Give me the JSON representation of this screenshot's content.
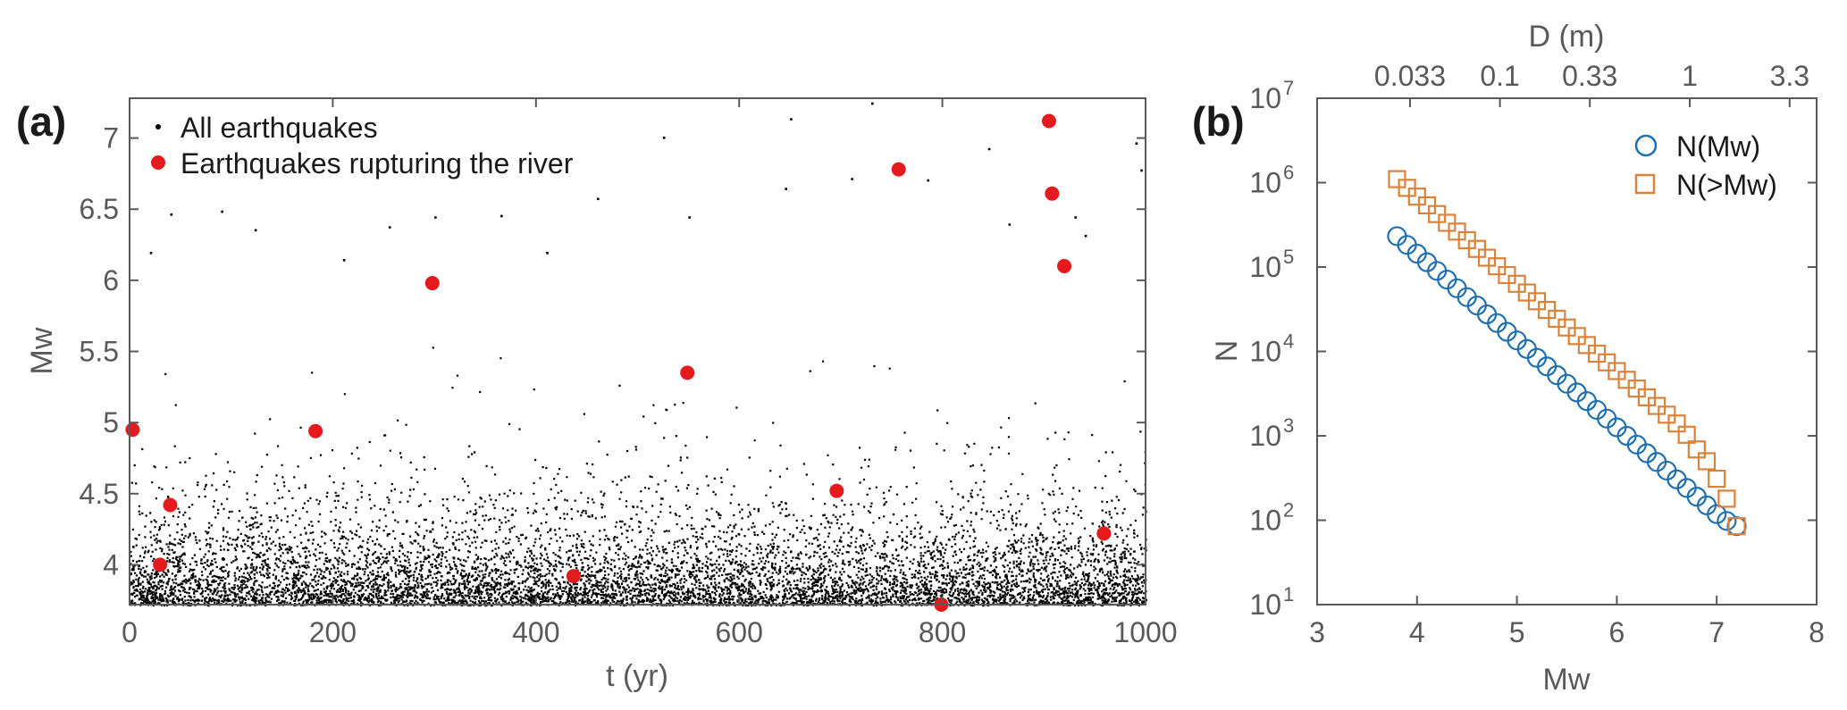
{
  "panel_a": {
    "label": "(a)",
    "xlabel": "t (yr)",
    "ylabel": "Mw",
    "xticks": [
      "0",
      "200",
      "400",
      "600",
      "800",
      "1000"
    ],
    "yticks": [
      "4",
      "4.5",
      "5",
      "5.5",
      "6",
      "6.5",
      "7"
    ],
    "legend": {
      "all": "All earthquakes",
      "river": "Earthquakes rupturing the river"
    }
  },
  "panel_b": {
    "label": "(b)",
    "xlabel": "Mw",
    "ylabel": "N",
    "top_xlabel": "D (m)",
    "xticks": [
      "3",
      "4",
      "5",
      "6",
      "7",
      "8"
    ],
    "top_xticks": [
      "0.033",
      "0.1",
      "0.33",
      "1",
      "3.3"
    ],
    "ytick_base": "10",
    "ytick_exps": [
      "1",
      "2",
      "3",
      "4",
      "5",
      "6",
      "7"
    ],
    "legend": {
      "n": "N(Mw)",
      "ngt": "N(>Mw)"
    }
  },
  "colors": {
    "river": "#e41a1c",
    "points": "#000000",
    "n_mw": "#1f6fb0",
    "n_gt_mw": "#d9823b",
    "axis": "#595959"
  },
  "chart_data": [
    {
      "type": "scatter",
      "title": "",
      "xlabel": "t (yr)",
      "ylabel": "Mw",
      "xlim": [
        0,
        1000
      ],
      "ylim": [
        3.72,
        7.28
      ],
      "series": [
        {
          "name": "All earthquakes",
          "marker": "dot",
          "distribution": "dense cloud of roughly 20000+ events, uniform in t over 0-1000 yr, Mw from ~3.75 up to ~7.25 with Gutenberg-Richter frequency decay (very dense below Mw 4.5)",
          "points": [
            [
              730,
              7.25
            ],
            [
              650,
              7.14
            ],
            [
              525,
              7.01
            ],
            [
              990,
              6.97
            ],
            [
              845,
              6.93
            ],
            [
              710,
              6.72
            ],
            [
              785,
              6.71
            ],
            [
              645,
              6.65
            ],
            [
              460,
              6.58
            ],
            [
              90,
              6.49
            ],
            [
              40,
              6.47
            ],
            [
              365,
              6.46
            ],
            [
              300,
              6.45
            ],
            [
              255,
              6.38
            ],
            [
              550,
              6.45
            ],
            [
              865,
              6.4
            ],
            [
              930,
              6.45
            ],
            [
              123,
              6.36
            ],
            [
              995,
              6.78
            ],
            [
              940,
              6.32
            ],
            [
              20,
              6.2
            ],
            [
              210,
              6.15
            ],
            [
              410,
              6.2
            ]
          ]
        },
        {
          "name": "Earthquakes rupturing the river",
          "marker": "circle",
          "points": [
            [
              3,
              4.95
            ],
            [
              30,
              4.0
            ],
            [
              40,
              4.42
            ],
            [
              183,
              4.94
            ],
            [
              298,
              5.98
            ],
            [
              437,
              3.92
            ],
            [
              549,
              5.35
            ],
            [
              696,
              4.52
            ],
            [
              757,
              6.78
            ],
            [
              799,
              3.72
            ],
            [
              905,
              7.12
            ],
            [
              908,
              6.61
            ],
            [
              920,
              6.1
            ],
            [
              959,
              4.22
            ]
          ]
        }
      ]
    },
    {
      "type": "scatter",
      "title": "",
      "xlabel": "Mw",
      "ylabel": "N",
      "x2label": "D (m)",
      "xlim": [
        3,
        8
      ],
      "ylim": [
        10,
        10000000
      ],
      "yscale": "log",
      "grid": false,
      "legend": "top-right",
      "series": [
        {
          "name": "N(Mw)",
          "marker": "circle",
          "x": [
            3.8,
            3.9,
            4.0,
            4.1,
            4.2,
            4.3,
            4.4,
            4.5,
            4.6,
            4.7,
            4.8,
            4.9,
            5.0,
            5.1,
            5.2,
            5.3,
            5.4,
            5.5,
            5.6,
            5.7,
            5.8,
            5.9,
            6.0,
            6.1,
            6.2,
            6.3,
            6.4,
            6.5,
            6.6,
            6.7,
            6.8,
            6.9,
            7.0,
            7.1,
            7.2
          ],
          "y": [
            232000,
            183000,
            144000,
            114000,
            90000,
            71000,
            56000,
            44000,
            35000,
            27500,
            21700,
            17100,
            13500,
            10700,
            8400,
            6650,
            5240,
            4140,
            3270,
            2580,
            2030,
            1600,
            1260,
            1000,
            787,
            622,
            490,
            387,
            305,
            241,
            190,
            150,
            118,
            98,
            85
          ]
        },
        {
          "name": "N(>Mw)",
          "marker": "square",
          "x": [
            3.8,
            3.9,
            4.0,
            4.1,
            4.2,
            4.3,
            4.4,
            4.5,
            4.6,
            4.7,
            4.8,
            4.9,
            5.0,
            5.1,
            5.2,
            5.3,
            5.4,
            5.5,
            5.6,
            5.7,
            5.8,
            5.9,
            6.0,
            6.1,
            6.2,
            6.3,
            6.4,
            6.5,
            6.6,
            6.7,
            6.8,
            6.9,
            7.0,
            7.1,
            7.2
          ],
          "y": [
            1100000,
            867000,
            683000,
            538000,
            424000,
            334000,
            263000,
            208000,
            164000,
            129000,
            102000,
            80300,
            63300,
            49900,
            39300,
            31000,
            24400,
            19200,
            15200,
            11900,
            9400,
            7420,
            5850,
            4610,
            3630,
            2860,
            2260,
            1780,
            1400,
            1030,
            690,
            500,
            310,
            180,
            85
          ]
        }
      ]
    }
  ]
}
